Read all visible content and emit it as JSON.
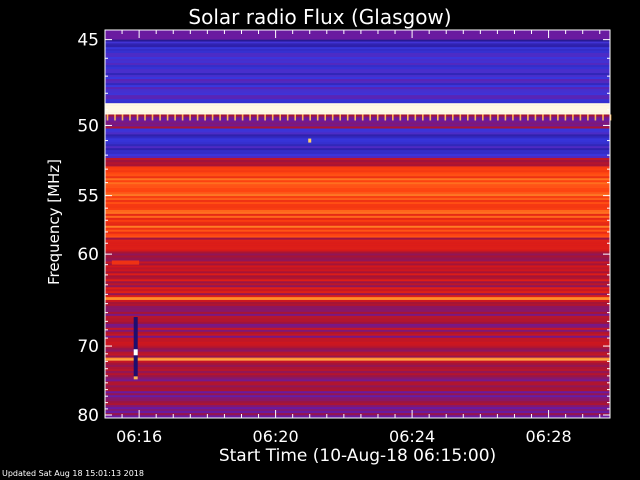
{
  "chart_data": {
    "type": "heatmap",
    "title": "Solar radio Flux (Glasgow)",
    "xlabel": "Start Time (10-Aug-18 06:15:00)",
    "ylabel": "Frequency [MHz]",
    "x_tick_labels": [
      "06:16",
      "06:20",
      "06:24",
      "06:28"
    ],
    "x_ticks_min": [
      16,
      20,
      24,
      28
    ],
    "x_range_min": [
      15.0,
      29.8
    ],
    "y_ticks": [
      45,
      50,
      55,
      60,
      70,
      80
    ],
    "y_range_mhz": [
      44.5,
      80.5
    ],
    "y_scale": "reciprocal",
    "colormap": [
      "#000000",
      "#1a0a60",
      "#2e1fa8",
      "#3838e0",
      "#6a1aa0",
      "#a0143a",
      "#d81818",
      "#ff4410",
      "#ff8c2a",
      "#ffe07a",
      "#ffffff"
    ],
    "bands": [
      {
        "mhz": [
          45.0,
          45.6
        ],
        "level": 0.25
      },
      {
        "mhz": [
          45.6,
          48.6
        ],
        "level": 0.3
      },
      {
        "mhz": [
          48.6,
          49.3
        ],
        "level": 0.98
      },
      {
        "mhz": [
          49.3,
          50.2
        ],
        "level": 0.45
      },
      {
        "mhz": [
          50.2,
          52.2
        ],
        "level": 0.28
      },
      {
        "mhz": [
          52.2,
          52.8
        ],
        "level": 0.55
      },
      {
        "mhz": [
          52.8,
          58.5
        ],
        "level": 0.7
      },
      {
        "mhz": [
          58.5,
          64.3
        ],
        "level": 0.55
      },
      {
        "mhz": [
          64.3,
          64.6
        ],
        "level": 0.85
      },
      {
        "mhz": [
          64.6,
          71.5
        ],
        "level": 0.5
      },
      {
        "mhz": [
          71.5,
          71.9
        ],
        "level": 0.85
      },
      {
        "mhz": [
          71.9,
          74.5
        ],
        "level": 0.5
      },
      {
        "mhz": [
          74.5,
          80.0
        ],
        "level": 0.45
      }
    ],
    "features": [
      {
        "kind": "vertical-streak",
        "time_min": 15.9,
        "mhz": [
          66.5,
          74.5
        ]
      },
      {
        "kind": "spot",
        "time_min": 21.0,
        "mhz": 51.0
      },
      {
        "kind": "patch",
        "time_min": [
          15.2,
          16.0
        ],
        "mhz": [
          60.6,
          61.0
        ]
      }
    ]
  },
  "footer": {
    "updated": "Updated Sat Aug 18 15:01:13 2018"
  }
}
